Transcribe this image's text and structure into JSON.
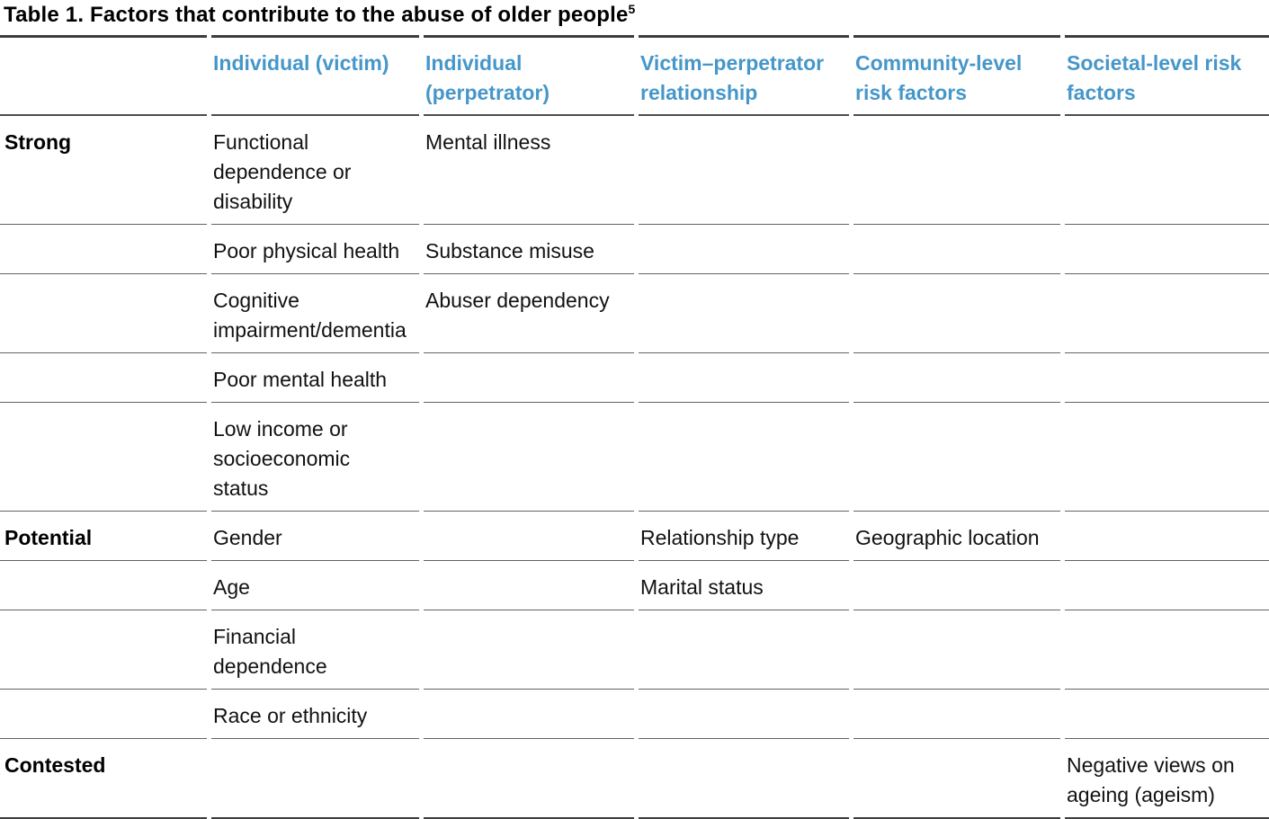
{
  "title": {
    "text": "Table 1. Factors that contribute to the abuse of older people",
    "superscript": "5"
  },
  "colors": {
    "header_blue": "#4697c9",
    "rule_dark": "#3d3d3d",
    "rule_light": "#636363",
    "text": "#121212"
  },
  "table": {
    "columns": [
      "",
      "Individual (victim)",
      "Individual (perpetrator)",
      "Victim–perpetrator relationship",
      "Community-level risk factors",
      "Societal-level risk factors"
    ],
    "rows": [
      {
        "label": "Strong",
        "cells": [
          "Functional dependence or disability",
          "Mental illness",
          "",
          "",
          ""
        ]
      },
      {
        "label": "",
        "cells": [
          "Poor physical health",
          "Substance misuse",
          "",
          "",
          ""
        ]
      },
      {
        "label": "",
        "cells": [
          "Cognitive impairment/dementia",
          "Abuser dependency",
          "",
          "",
          ""
        ]
      },
      {
        "label": "",
        "cells": [
          "Poor mental health",
          "",
          "",
          "",
          ""
        ]
      },
      {
        "label": "",
        "cells": [
          "Low income or socioeconomic status",
          "",
          "",
          "",
          ""
        ]
      },
      {
        "label": "Potential",
        "cells": [
          "Gender",
          "",
          "Relationship type",
          "Geographic location",
          ""
        ]
      },
      {
        "label": "",
        "cells": [
          "Age",
          "",
          "Marital status",
          "",
          ""
        ]
      },
      {
        "label": "",
        "cells": [
          "Financial dependence",
          "",
          "",
          "",
          ""
        ]
      },
      {
        "label": "",
        "cells": [
          "Race or ethnicity",
          "",
          "",
          "",
          ""
        ]
      },
      {
        "label": "Contested",
        "cells": [
          "",
          "",
          "",
          "",
          "Negative views on ageing (ageism)"
        ]
      }
    ]
  }
}
